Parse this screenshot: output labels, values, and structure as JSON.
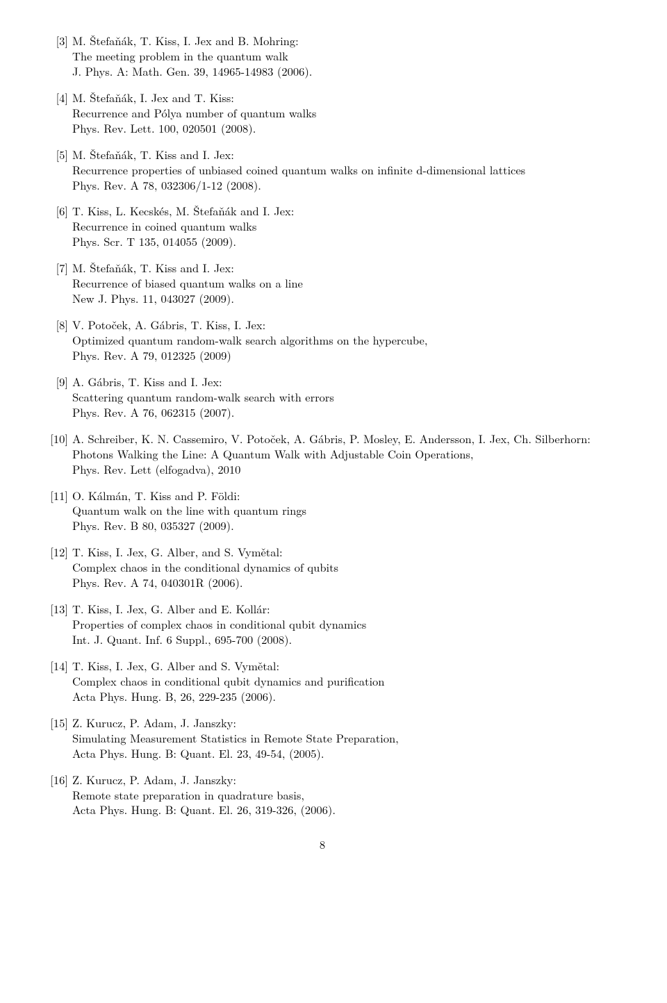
{
  "page_number": "8",
  "references": [
    {
      "num": "[3]",
      "lines": [
        "M. Štefaňák, T. Kiss, I. Jex and B. Mohring:",
        "The meeting problem in the quantum walk",
        "J. Phys. A: Math. Gen. 39, 14965-14983 (2006)."
      ]
    },
    {
      "num": "[4]",
      "lines": [
        "M. Štefaňák, I. Jex and T. Kiss:",
        "Recurrence and Pólya number of quantum walks",
        "Phys. Rev. Lett. 100, 020501 (2008)."
      ]
    },
    {
      "num": "[5]",
      "lines": [
        "M. Štefaňák, T. Kiss and I. Jex:",
        "Recurrence properties of unbiased coined quantum walks on infinite d-dimensional lattices",
        "Phys. Rev. A 78, 032306/1-12 (2008)."
      ]
    },
    {
      "num": "[6]",
      "lines": [
        "T. Kiss, L. Kecskés, M. Štefaňák and I. Jex:",
        "Recurrence in coined quantum walks",
        "Phys. Scr. T  135, 014055 (2009)."
      ]
    },
    {
      "num": "[7]",
      "lines": [
        "M. Štefaňák, T. Kiss and I. Jex:",
        "Recurrence of biased quantum walks on a line",
        "New J. Phys. 11, 043027 (2009)."
      ]
    },
    {
      "num": "[8]",
      "lines": [
        "V. Potoček, A. Gábris, T. Kiss, I. Jex:",
        "Optimized quantum random-walk search algorithms on the hypercube,",
        "Phys. Rev. A 79, 012325 (2009)"
      ]
    },
    {
      "num": "[9]",
      "lines": [
        "A. Gábris, T. Kiss and I. Jex:",
        "Scattering quantum random-walk search with errors",
        "Phys. Rev. A 76, 062315 (2007)."
      ]
    },
    {
      "num": "[10]",
      "lines": [
        "A. Schreiber, K. N. Cassemiro, V. Potoček, A. Gábris, P. Mosley, E. Andersson, I. Jex, Ch. Silberhorn:",
        "Photons Walking the Line: A Quantum Walk with Adjustable Coin Operations,",
        "Phys. Rev. Lett (elfogadva), 2010"
      ]
    },
    {
      "num": "[11]",
      "lines": [
        "O. Kálmán, T. Kiss and P. Földi:",
        "Quantum walk on the line with quantum rings",
        "Phys. Rev. B 80, 035327 (2009)."
      ]
    },
    {
      "num": "[12]",
      "lines": [
        "T. Kiss, I. Jex, G. Alber, and S. Vymětal:",
        "Complex chaos in the conditional dynamics of qubits",
        "Phys. Rev. A 74, 040301R (2006)."
      ]
    },
    {
      "num": "[13]",
      "lines": [
        "T. Kiss, I. Jex, G. Alber and E. Kollár:",
        "Properties of complex chaos in conditional qubit dynamics",
        "Int. J. Quant. Inf. 6 Suppl., 695-700 (2008)."
      ]
    },
    {
      "num": "[14]",
      "lines": [
        "T. Kiss, I. Jex, G. Alber and S. Vymětal:",
        "Complex chaos in conditional qubit dynamics and purification",
        "Acta Phys. Hung. B,  26, 229-235 (2006)."
      ]
    },
    {
      "num": "[15]",
      "lines": [
        "Z. Kurucz, P. Adam, J. Janszky:",
        "Simulating Measurement Statistics in Remote State Preparation,",
        "Acta Phys. Hung. B: Quant. El. 23, 49-54, (2005)."
      ]
    },
    {
      "num": "[16]",
      "lines": [
        "Z. Kurucz, P. Adam, J. Janszky:",
        "Remote state preparation in quadrature basis,",
        "Acta Phys. Hung. B: Quant. El. 26, 319-326, (2006)."
      ]
    }
  ]
}
